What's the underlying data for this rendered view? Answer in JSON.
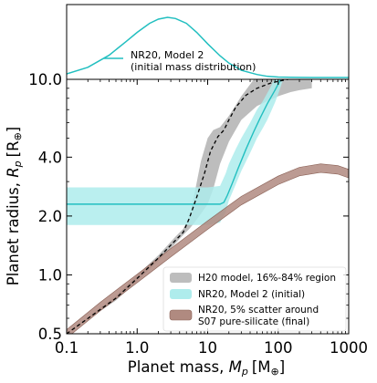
{
  "chart_data": [
    {
      "type": "line",
      "panel": "top",
      "legend": {
        "placement": "center-right",
        "entries": [
          "NR20, Model 2",
          "(initial mass distribution)"
        ]
      },
      "series": [
        {
          "name": "NR20, Model 2 (initial mass distribution)",
          "color": "#22bfc0",
          "note_units": "x in Earth masses, y relative density (0-1)",
          "x": [
            0.1,
            0.2,
            0.4,
            0.7,
            1.0,
            1.5,
            2.0,
            2.7,
            3.5,
            5.0,
            7.0,
            10,
            15,
            20,
            30,
            50,
            70,
            100,
            150,
            200,
            300,
            500,
            1000
          ],
          "y": [
            0.06,
            0.17,
            0.37,
            0.6,
            0.75,
            0.9,
            0.97,
            1.0,
            0.98,
            0.9,
            0.75,
            0.56,
            0.36,
            0.24,
            0.12,
            0.05,
            0.02,
            0.008,
            0.003,
            0.001,
            0.0,
            0.0,
            0.0
          ]
        }
      ]
    },
    {
      "type": "line",
      "panel": "main",
      "xlabel_main": "Planet mass, ",
      "xlabel_sym": "M",
      "xlabel_sub": "p",
      "xlabel_unit": "[M",
      "xlabel_unit_sub": "⊕",
      "xlabel_close": "]",
      "ylabel_main": "Planet radius, ",
      "ylabel_sym": "R",
      "ylabel_sub": "p",
      "ylabel_unit": "[R",
      "ylabel_unit_sub": "⊕",
      "ylabel_close": "]",
      "xscale": "log",
      "yscale": "log",
      "xlim": [
        0.1,
        1000
      ],
      "ylim": [
        0.5,
        10.0
      ],
      "x_ticks": [
        0.1,
        1.0,
        10,
        100,
        1000
      ],
      "x_tick_labels": [
        "0.1",
        "1.0",
        "10",
        "100",
        "1000"
      ],
      "y_ticks": [
        0.5,
        1.0,
        2.0,
        4.0,
        10.0
      ],
      "y_tick_labels": [
        "0.5",
        "1.0",
        "2.0",
        "4.0",
        "10.0"
      ],
      "legend": {
        "placement": "lower-right",
        "entries": [
          {
            "label": "H20 model, 16%-84% region",
            "color": "#aaaaaa"
          },
          {
            "label": "NR20, Model 2 (initial)",
            "color": "#aeecec"
          },
          {
            "label": "NR20, 5% scatter around",
            "label2": "S07 pure-silicate (final)",
            "color": "#b08a80"
          }
        ]
      },
      "series": [
        {
          "name": "H20 model, 16%-84% region",
          "kind": "band",
          "color": "#bbbbbb",
          "x": [
            0.1,
            0.5,
            1.0,
            2.0,
            3.5,
            4.5,
            5.5,
            6.5,
            8,
            10,
            12,
            15,
            20,
            30,
            50,
            100,
            150,
            200,
            300
          ],
          "lo": [
            0.5,
            0.74,
            0.93,
            1.18,
            1.45,
            1.6,
            1.72,
            1.85,
            2.05,
            2.3,
            2.75,
            3.7,
            4.8,
            6.2,
            7.3,
            8.2,
            8.6,
            8.8,
            9.0
          ],
          "hi": [
            0.5,
            0.78,
            1.0,
            1.26,
            1.57,
            1.72,
            2.0,
            2.6,
            3.8,
            5.0,
            5.5,
            5.7,
            6.5,
            8.2,
            10.5,
            12.5,
            12.5,
            12.5,
            12.5
          ]
        },
        {
          "name": "H20 median",
          "kind": "line",
          "style": "dashed",
          "color": "#000000",
          "x": [
            0.1,
            0.5,
            1.0,
            2.0,
            4.5,
            5.5,
            7,
            9,
            11,
            14,
            17,
            20,
            25,
            35,
            50,
            80,
            120,
            180
          ],
          "y": [
            0.5,
            0.76,
            0.96,
            1.22,
            1.65,
            1.95,
            2.5,
            3.3,
            4.3,
            5.1,
            5.5,
            6.2,
            7.2,
            8.3,
            9.0,
            9.6,
            9.9,
            10.2
          ]
        },
        {
          "name": "NR20, Model 2 (initial)",
          "kind": "band",
          "color": "#aeecec",
          "x": [
            0.1,
            1,
            10,
            15,
            18,
            20,
            25,
            30,
            40,
            50,
            60,
            70,
            80,
            90,
            100,
            120,
            150
          ],
          "lo": [
            1.8,
            1.8,
            1.8,
            1.85,
            2.1,
            2.4,
            2.9,
            3.4,
            4.2,
            5.0,
            5.6,
            6.2,
            6.9,
            7.6,
            8.4,
            10.2,
            12.5
          ],
          "hi": [
            2.8,
            2.8,
            2.8,
            2.85,
            3.3,
            3.7,
            4.4,
            5.0,
            6.0,
            7.0,
            7.7,
            8.5,
            9.3,
            10.2,
            11.0,
            12.5,
            12.5
          ]
        },
        {
          "name": "NR20, Model 2 (initial) median",
          "kind": "line",
          "color": "#22bfc0",
          "x": [
            0.1,
            10,
            15,
            17,
            19,
            22,
            27,
            35,
            45,
            55,
            70,
            90,
            110,
            130
          ],
          "y": [
            2.3,
            2.3,
            2.3,
            2.35,
            2.55,
            2.9,
            3.5,
            4.4,
            5.4,
            6.3,
            7.5,
            8.8,
            10.1,
            11.0
          ]
        },
        {
          "name": "NR20, 5% scatter around S07 pure-silicate (final)",
          "kind": "band",
          "color": "#b08a80",
          "edge_color": "#8a6055",
          "rel_width": 0.05,
          "x": [
            0.1,
            0.3,
            1,
            3,
            10,
            30,
            100,
            200,
            400,
            700,
            1000
          ],
          "y": [
            0.5,
            0.69,
            0.96,
            1.3,
            1.8,
            2.4,
            3.05,
            3.38,
            3.52,
            3.45,
            3.3
          ]
        }
      ]
    }
  ]
}
